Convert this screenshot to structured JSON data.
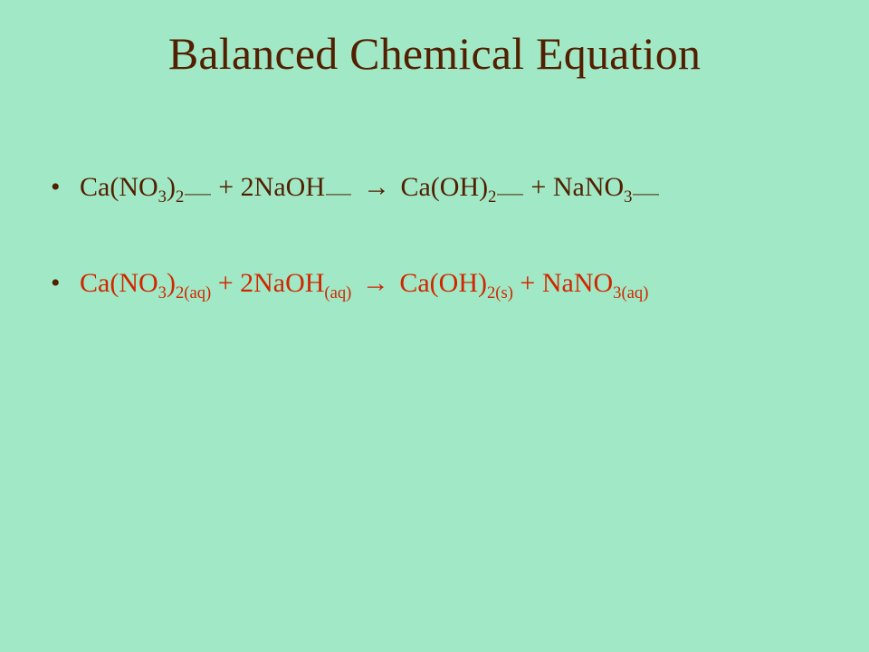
{
  "slide": {
    "background_color": "#a1e9c6",
    "title": {
      "text": "Balanced Chemical Equation",
      "color": "#521f00",
      "fontsize_pt": 40
    },
    "bullet_color": "#521f00",
    "arrow_glyph": "→",
    "equations": [
      {
        "color": "#521f00",
        "fontsize_pt": 29,
        "terms": [
          {
            "pre": "Ca(NO",
            "sub1": "3",
            "mid": ")",
            "sub2": "2",
            "trail": "blank"
          },
          {
            "pre": " + 2NaOH",
            "sub1": "",
            "mid": "",
            "sub2": "",
            "trail": "blank"
          },
          {
            "pre": " ",
            "trail": "arrow"
          },
          {
            "pre": " Ca(OH)",
            "sub1": "2",
            "mid": "",
            "sub2": "",
            "trail": "blank"
          },
          {
            "pre": " + NaNO",
            "sub1": "3",
            "mid": "",
            "sub2": "",
            "trail": "blank"
          }
        ]
      },
      {
        "color": "#d12600",
        "fontsize_pt": 29,
        "terms": [
          {
            "pre": "Ca(NO",
            "sub1": "3",
            "mid": ")",
            "sub2": "2(aq)",
            "trail": ""
          },
          {
            "pre": " + 2NaOH",
            "sub1": "(aq)",
            "mid": "",
            "sub2": "",
            "trail": ""
          },
          {
            "pre": " ",
            "trail": "arrow"
          },
          {
            "pre": " Ca(OH)",
            "sub1": "2(s)",
            "mid": "",
            "sub2": "",
            "trail": ""
          },
          {
            "pre": " + NaNO",
            "sub1": "3(aq)",
            "mid": "",
            "sub2": "",
            "trail": ""
          }
        ]
      }
    ]
  }
}
